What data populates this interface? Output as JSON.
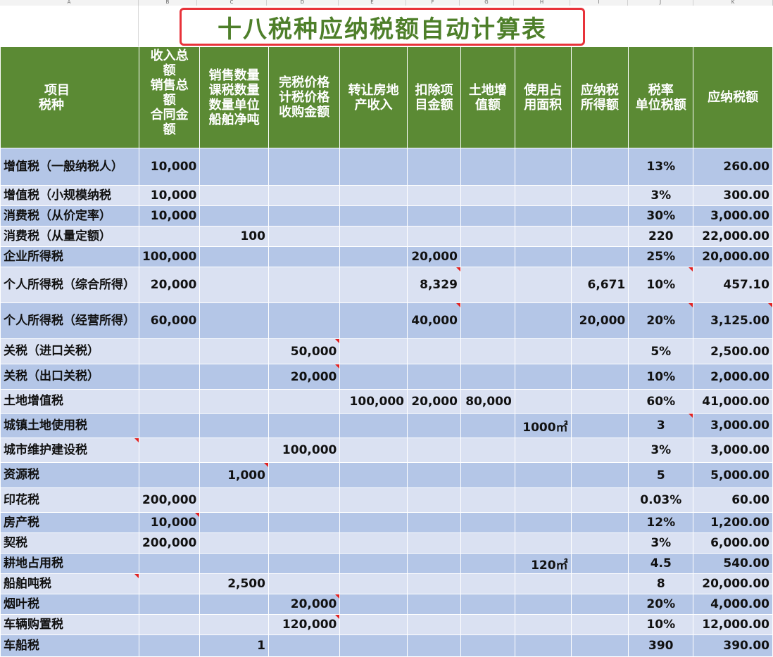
{
  "sheet": {
    "column_letters": [
      "A",
      "B",
      "C",
      "D",
      "E",
      "F",
      "G",
      "H",
      "I",
      "J",
      "K"
    ],
    "title": "十八税种应纳税额自动计算表",
    "headers": [
      [
        "项目",
        "税种"
      ],
      [
        "收入总",
        "额",
        "销售总",
        "额",
        "合同金",
        "额"
      ],
      [
        "销售数量",
        "课税数量",
        "数量单位",
        "船舶净吨"
      ],
      [
        "完税价格",
        "计税价格",
        "收购金额"
      ],
      [
        "转让房地",
        "产收入"
      ],
      [
        "扣除项",
        "目金额"
      ],
      [
        "土地增",
        "值额"
      ],
      [
        "使用占",
        "用面积"
      ],
      [
        "应纳税",
        "所得额"
      ],
      [
        "税率",
        "单位税额"
      ],
      [
        "应纳税额"
      ]
    ],
    "rows": [
      {
        "name": "增值税（一般纳税人）",
        "b": "10,000",
        "c": "",
        "d": "",
        "e": "",
        "f": "",
        "g": "",
        "h": "",
        "i": "",
        "rate": "13%",
        "tax": "260.00"
      },
      {
        "name": "增值税（小规模纳税",
        "b": "10,000",
        "c": "",
        "d": "",
        "e": "",
        "f": "",
        "g": "",
        "h": "",
        "i": "",
        "rate": "3%",
        "tax": "300.00"
      },
      {
        "name": "消费税（从价定率）",
        "b": "10,000",
        "c": "",
        "d": "",
        "e": "",
        "f": "",
        "g": "",
        "h": "",
        "i": "",
        "rate": "30%",
        "tax": "3,000.00"
      },
      {
        "name": "消费税（从量定额）",
        "b": "",
        "c": "100",
        "d": "",
        "e": "",
        "f": "",
        "g": "",
        "h": "",
        "i": "",
        "rate": "220",
        "tax": "22,000.00"
      },
      {
        "name": "企业所得税",
        "b": "100,000",
        "c": "",
        "d": "",
        "e": "",
        "f": "20,000",
        "g": "",
        "h": "",
        "i": "",
        "rate": "25%",
        "tax": "20,000.00"
      },
      {
        "name": "个人所得税（综合所得）",
        "b": "20,000",
        "c": "",
        "d": "",
        "e": "",
        "f": "8,329",
        "g": "",
        "h": "",
        "i": "6,671",
        "rate": "10%",
        "tax": "457.10"
      },
      {
        "name": "个人所得税（经营所得）",
        "b": "60,000",
        "c": "",
        "d": "",
        "e": "",
        "f": "40,000",
        "g": "",
        "h": "",
        "i": "20,000",
        "rate": "20%",
        "tax": "3,125.00"
      },
      {
        "name": "关税（进口关税）",
        "b": "",
        "c": "",
        "d": "50,000",
        "e": "",
        "f": "",
        "g": "",
        "h": "",
        "i": "",
        "rate": "5%",
        "tax": "2,500.00"
      },
      {
        "name": "关税（出口关税）",
        "b": "",
        "c": "",
        "d": "20,000",
        "e": "",
        "f": "",
        "g": "",
        "h": "",
        "i": "",
        "rate": "10%",
        "tax": "2,000.00"
      },
      {
        "name": "土地增值税",
        "b": "",
        "c": "",
        "d": "",
        "e": "100,000",
        "f": "20,000",
        "g": "80,000",
        "h": "",
        "i": "",
        "rate": "60%",
        "tax": "41,000.00"
      },
      {
        "name": "城镇土地使用税",
        "b": "",
        "c": "",
        "d": "",
        "e": "",
        "f": "",
        "g": "",
        "h": "1000㎡",
        "i": "",
        "rate": "3",
        "tax": "3,000.00"
      },
      {
        "name": "城市维护建设税",
        "b": "",
        "c": "",
        "d": "100,000",
        "e": "",
        "f": "",
        "g": "",
        "h": "",
        "i": "",
        "rate": "3%",
        "tax": "3,000.00"
      },
      {
        "name": "资源税",
        "b": "",
        "c": "1,000",
        "d": "",
        "e": "",
        "f": "",
        "g": "",
        "h": "",
        "i": "",
        "rate": "5",
        "tax": "5,000.00"
      },
      {
        "name": "印花税",
        "b": "200,000",
        "c": "",
        "d": "",
        "e": "",
        "f": "",
        "g": "",
        "h": "",
        "i": "",
        "rate": "0.03%",
        "tax": "60.00"
      },
      {
        "name": "房产税",
        "b": "10,000",
        "c": "",
        "d": "",
        "e": "",
        "f": "",
        "g": "",
        "h": "",
        "i": "",
        "rate": "12%",
        "tax": "1,200.00"
      },
      {
        "name": "契税",
        "b": "200,000",
        "c": "",
        "d": "",
        "e": "",
        "f": "",
        "g": "",
        "h": "",
        "i": "",
        "rate": "3%",
        "tax": "6,000.00"
      },
      {
        "name": "耕地占用税",
        "b": "",
        "c": "",
        "d": "",
        "e": "",
        "f": "",
        "g": "",
        "h": "120㎡",
        "i": "",
        "rate": "4.5",
        "tax": "540.00"
      },
      {
        "name": "船舶吨税",
        "b": "",
        "c": "2,500",
        "d": "",
        "e": "",
        "f": "",
        "g": "",
        "h": "",
        "i": "",
        "rate": "8",
        "tax": "20,000.00"
      },
      {
        "name": "烟叶税",
        "b": "",
        "c": "",
        "d": "20,000",
        "e": "",
        "f": "",
        "g": "",
        "h": "",
        "i": "",
        "rate": "20%",
        "tax": "4,000.00"
      },
      {
        "name": "车辆购置税",
        "b": "",
        "c": "",
        "d": "120,000",
        "e": "",
        "f": "",
        "g": "",
        "h": "",
        "i": "",
        "rate": "10%",
        "tax": "12,000.00"
      },
      {
        "name": "车船税",
        "b": "",
        "c": "1",
        "d": "",
        "e": "",
        "f": "",
        "g": "",
        "h": "",
        "i": "",
        "rate": "390",
        "tax": "390.00"
      }
    ]
  },
  "colors": {
    "header_green": "#5b8a34",
    "title_green": "#4e7f2a",
    "title_border_red": "#e8323a",
    "row_blue_dark": "#b4c6e7",
    "row_blue_light": "#dae1f2",
    "comment_marker_red": "#e02020"
  }
}
